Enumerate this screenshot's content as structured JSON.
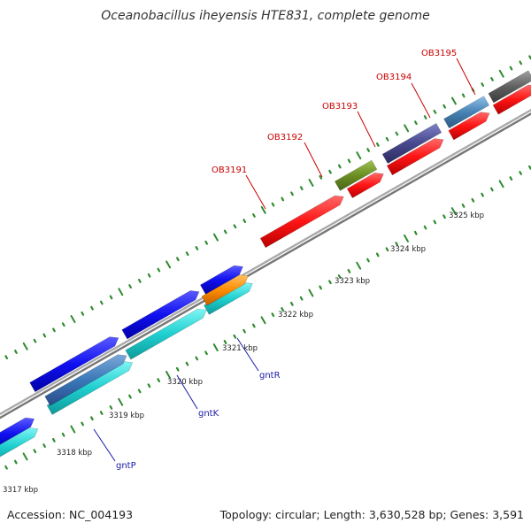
{
  "title": "Oceanobacillus iheyensis HTE831, complete genome",
  "footer": {
    "accession": "Accession: NC_004193",
    "summary": "Topology: circular; Length: 3,630,528 bp; Genes: 3,591"
  },
  "colors": {
    "backbone": "#8c8c8c",
    "tick": "#2e8b2e",
    "label_red": "#cc0000",
    "label_blue": "#1a1aa8"
  },
  "scale_labels": [
    "3317 kbp",
    "3318 kbp",
    "3319 kbp",
    "3320 kbp",
    "3321 kbp",
    "3322 kbp",
    "3323 kbp",
    "3324 kbp",
    "3325 kbp"
  ],
  "gene_labels": [
    {
      "name": "OB3191",
      "color": "red"
    },
    {
      "name": "OB3192",
      "color": "red"
    },
    {
      "name": "OB3193",
      "color": "red"
    },
    {
      "name": "OB3194",
      "color": "red"
    },
    {
      "name": "OB3195",
      "color": "red"
    },
    {
      "name": "gntR",
      "color": "blue"
    },
    {
      "name": "gntK",
      "color": "blue"
    },
    {
      "name": "gntP",
      "color": "blue"
    }
  ]
}
